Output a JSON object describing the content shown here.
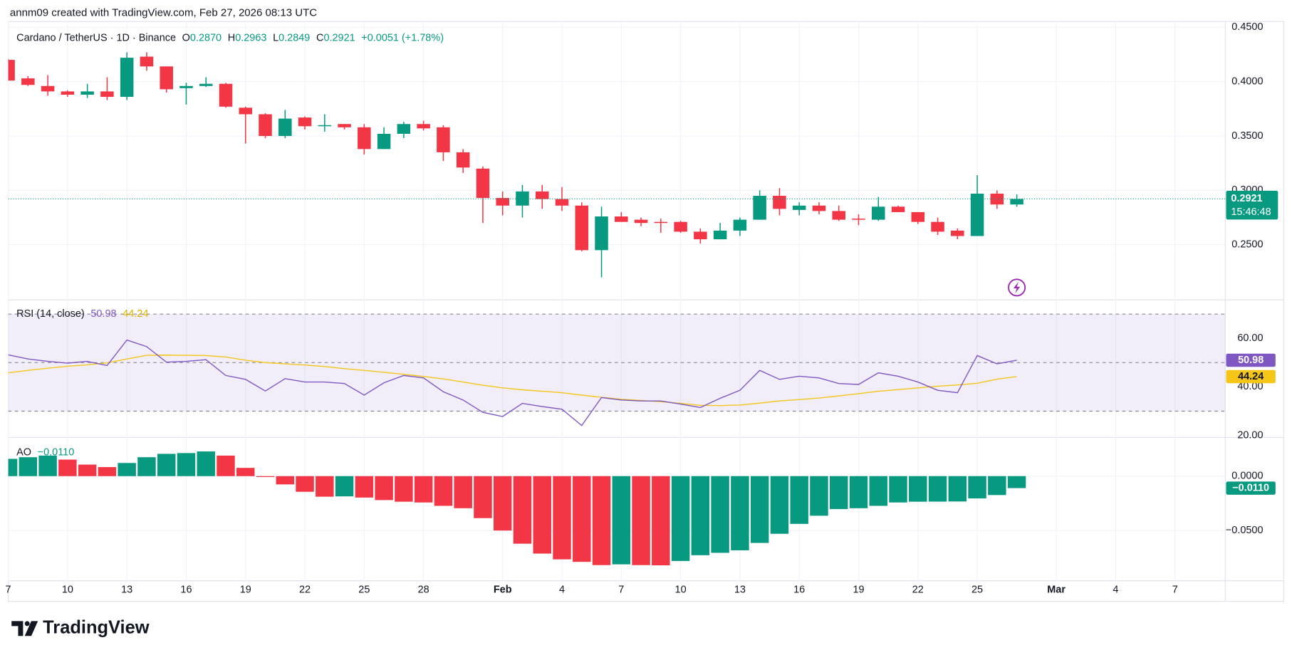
{
  "attribution": "annm09 created with TradingView.com, Feb 27, 2026 08:13 UTC",
  "logo": "TradingView",
  "chart_data": [
    {
      "type": "candlestick",
      "title": "Cardano / TetherUS · 1D · Binance",
      "legend": [
        {
          "label": "O",
          "value": "0.2870"
        },
        {
          "label": "H",
          "value": "0.2963"
        },
        {
          "label": "L",
          "value": "0.2849"
        },
        {
          "label": "C",
          "value": "0.2921"
        }
      ],
      "change": "+0.0051 (+1.78%)",
      "categories": [
        "7",
        null,
        null,
        "10",
        null,
        null,
        "13",
        null,
        null,
        "16",
        null,
        null,
        "19",
        null,
        null,
        "22",
        null,
        null,
        "25",
        null,
        null,
        "28",
        null,
        null,
        null,
        "Feb",
        null,
        null,
        "4",
        null,
        null,
        "7",
        null,
        null,
        "10",
        null,
        null,
        "13",
        null,
        null,
        "16",
        null,
        null,
        "19",
        null,
        null,
        "22",
        null,
        null,
        "25",
        null,
        null,
        null,
        "Mar",
        null,
        null,
        "4",
        null,
        null,
        "7"
      ],
      "open": [
        0.42,
        0.403,
        0.396,
        0.391,
        0.388,
        0.391,
        0.386,
        0.423,
        0.414,
        0.394,
        0.396,
        0.398,
        0.376,
        0.37,
        0.35,
        0.367,
        0.359,
        0.361,
        0.358,
        0.338,
        0.352,
        0.361,
        0.358,
        0.335,
        0.32,
        0.293,
        0.286,
        0.299,
        0.292,
        0.286,
        0.245,
        0.276,
        0.273,
        0.271,
        0.271,
        0.262,
        0.255,
        0.263,
        0.273,
        0.295,
        0.282,
        0.286,
        0.281,
        0.274,
        0.273,
        0.285,
        0.28,
        0.271,
        0.263,
        0.258,
        0.297,
        0.287,
        null,
        null,
        null,
        null,
        null,
        null,
        null,
        null
      ],
      "high": [
        0.421,
        0.405,
        0.406,
        0.392,
        0.398,
        0.404,
        0.427,
        0.427,
        0.414,
        0.399,
        0.404,
        0.399,
        0.377,
        0.371,
        0.374,
        0.368,
        0.37,
        0.361,
        0.361,
        0.358,
        0.363,
        0.364,
        0.36,
        0.338,
        0.322,
        0.299,
        0.305,
        0.305,
        0.303,
        0.289,
        0.285,
        0.28,
        0.275,
        0.274,
        0.272,
        0.265,
        0.27,
        0.275,
        0.3,
        0.302,
        0.289,
        0.289,
        0.286,
        0.278,
        0.294,
        0.286,
        0.28,
        0.275,
        0.265,
        0.314,
        0.3,
        0.2963,
        null,
        null,
        null,
        null,
        null,
        null,
        null,
        null
      ],
      "low": [
        0.401,
        0.396,
        0.387,
        0.386,
        0.385,
        0.383,
        0.383,
        0.41,
        0.39,
        0.379,
        0.395,
        0.376,
        0.343,
        0.348,
        0.348,
        0.356,
        0.354,
        0.356,
        0.333,
        0.338,
        0.348,
        0.355,
        0.327,
        0.316,
        0.27,
        0.277,
        0.275,
        0.283,
        0.281,
        0.244,
        0.22,
        0.271,
        0.267,
        0.261,
        0.261,
        0.251,
        0.255,
        0.258,
        0.273,
        0.277,
        0.277,
        0.278,
        0.272,
        0.268,
        0.272,
        0.28,
        0.269,
        0.259,
        0.255,
        0.258,
        0.283,
        0.2849,
        null,
        null,
        null,
        null,
        null,
        null,
        null,
        null
      ],
      "close": [
        0.401,
        0.397,
        0.391,
        0.388,
        0.391,
        0.386,
        0.422,
        0.414,
        0.393,
        0.396,
        0.398,
        0.377,
        0.37,
        0.35,
        0.366,
        0.359,
        0.36,
        0.358,
        0.338,
        0.352,
        0.361,
        0.357,
        0.335,
        0.321,
        0.293,
        0.286,
        0.299,
        0.292,
        0.286,
        0.245,
        0.276,
        0.271,
        0.27,
        0.27,
        0.262,
        0.255,
        0.263,
        0.273,
        0.295,
        0.283,
        0.286,
        0.281,
        0.273,
        0.273,
        0.285,
        0.28,
        0.271,
        0.262,
        0.258,
        0.297,
        0.287,
        0.2921,
        null,
        null,
        null,
        null,
        null,
        null,
        null,
        null
      ],
      "up_color": "#089981",
      "down_color": "#f23645",
      "ylim": [
        0.2,
        0.455
      ],
      "yticks": [
        {
          "value": 0.25,
          "label": "0.2500"
        },
        {
          "value": 0.3,
          "label": "0.3000"
        },
        {
          "value": 0.35,
          "label": "0.3500"
        },
        {
          "value": 0.4,
          "label": "0.4000"
        },
        {
          "value": 0.45,
          "label": "0.4500"
        }
      ],
      "grid": true,
      "last_price_label": "0.2921",
      "countdown": "15:46:48"
    },
    {
      "type": "line",
      "title": "RSI (14, close)",
      "series": [
        {
          "color": "#7e57c2",
          "legend_value": "50.98",
          "values": [
            53.2,
            51.5,
            50.5,
            49.8,
            50.5,
            48.8,
            59.3,
            56.6,
            50.2,
            50.5,
            51.2,
            44.7,
            43.1,
            38.3,
            43.4,
            42.0,
            42.0,
            41.4,
            36.6,
            41.7,
            44.7,
            43.7,
            38.0,
            34.6,
            29.5,
            27.8,
            33.2,
            31.9,
            30.8,
            24.1,
            35.6,
            34.6,
            34.2,
            34.2,
            32.9,
            31.5,
            35.3,
            38.6,
            46.8,
            43.1,
            44.4,
            43.7,
            41.4,
            41.0,
            45.8,
            44.4,
            42.0,
            38.6,
            37.6,
            52.9,
            49.5,
            50.98,
            null,
            null,
            null,
            null,
            null,
            null,
            null,
            null
          ]
        },
        {
          "color": "#f5c518",
          "legend_value": "44.24",
          "values": [
            45.8,
            46.8,
            47.7,
            48.5,
            49.1,
            49.9,
            51.5,
            53.0,
            53.1,
            53.0,
            52.9,
            52.3,
            51.0,
            50.0,
            49.5,
            49.0,
            48.4,
            47.5,
            46.8,
            46.0,
            45.2,
            44.3,
            43.3,
            42.0,
            40.7,
            39.6,
            38.8,
            38.2,
            37.6,
            36.6,
            35.7,
            34.9,
            34.4,
            33.9,
            33.2,
            32.4,
            32.3,
            32.5,
            33.3,
            34.2,
            34.8,
            35.4,
            36.3,
            37.2,
            38.2,
            38.9,
            39.6,
            40.3,
            40.8,
            41.5,
            43.2,
            44.24,
            null,
            null,
            null,
            null,
            null,
            null,
            null,
            null
          ]
        }
      ],
      "ylim": [
        19.5,
        75.5
      ],
      "yticks": [
        {
          "value": 20,
          "label": "20.00"
        },
        {
          "value": 40,
          "label": "40.00"
        },
        {
          "value": 60,
          "label": "60.00"
        }
      ],
      "grid": false,
      "band": [
        30,
        70
      ],
      "midline": 50,
      "band_color": "#7e57c2"
    },
    {
      "type": "bar",
      "title": "AO",
      "legend_value": "−0.0110",
      "values": [
        0.0159,
        0.0174,
        0.0189,
        0.0152,
        0.0106,
        0.0083,
        0.0121,
        0.0174,
        0.0205,
        0.0212,
        0.0227,
        0.0189,
        0.0076,
        -0.0008,
        -0.0076,
        -0.0144,
        -0.0189,
        -0.0186,
        -0.0197,
        -0.022,
        -0.0235,
        -0.0242,
        -0.0273,
        -0.0295,
        -0.0386,
        -0.05,
        -0.0621,
        -0.0712,
        -0.0765,
        -0.0788,
        -0.0818,
        -0.0811,
        -0.0818,
        -0.082,
        -0.078,
        -0.0727,
        -0.0705,
        -0.0682,
        -0.0614,
        -0.053,
        -0.0439,
        -0.0364,
        -0.0303,
        -0.0295,
        -0.0273,
        -0.0242,
        -0.0235,
        -0.0234,
        -0.0233,
        -0.0205,
        -0.0174,
        -0.011,
        null,
        null,
        null,
        null,
        null,
        null,
        null,
        null
      ],
      "up_color": "#089981",
      "down_color": "#f23645",
      "ylim": [
        -0.0962,
        0.0348
      ],
      "yticks": [
        {
          "value": -0.05,
          "label": "−0.0500"
        },
        {
          "value": 0,
          "label": "0.0000"
        }
      ],
      "grid": true
    }
  ]
}
